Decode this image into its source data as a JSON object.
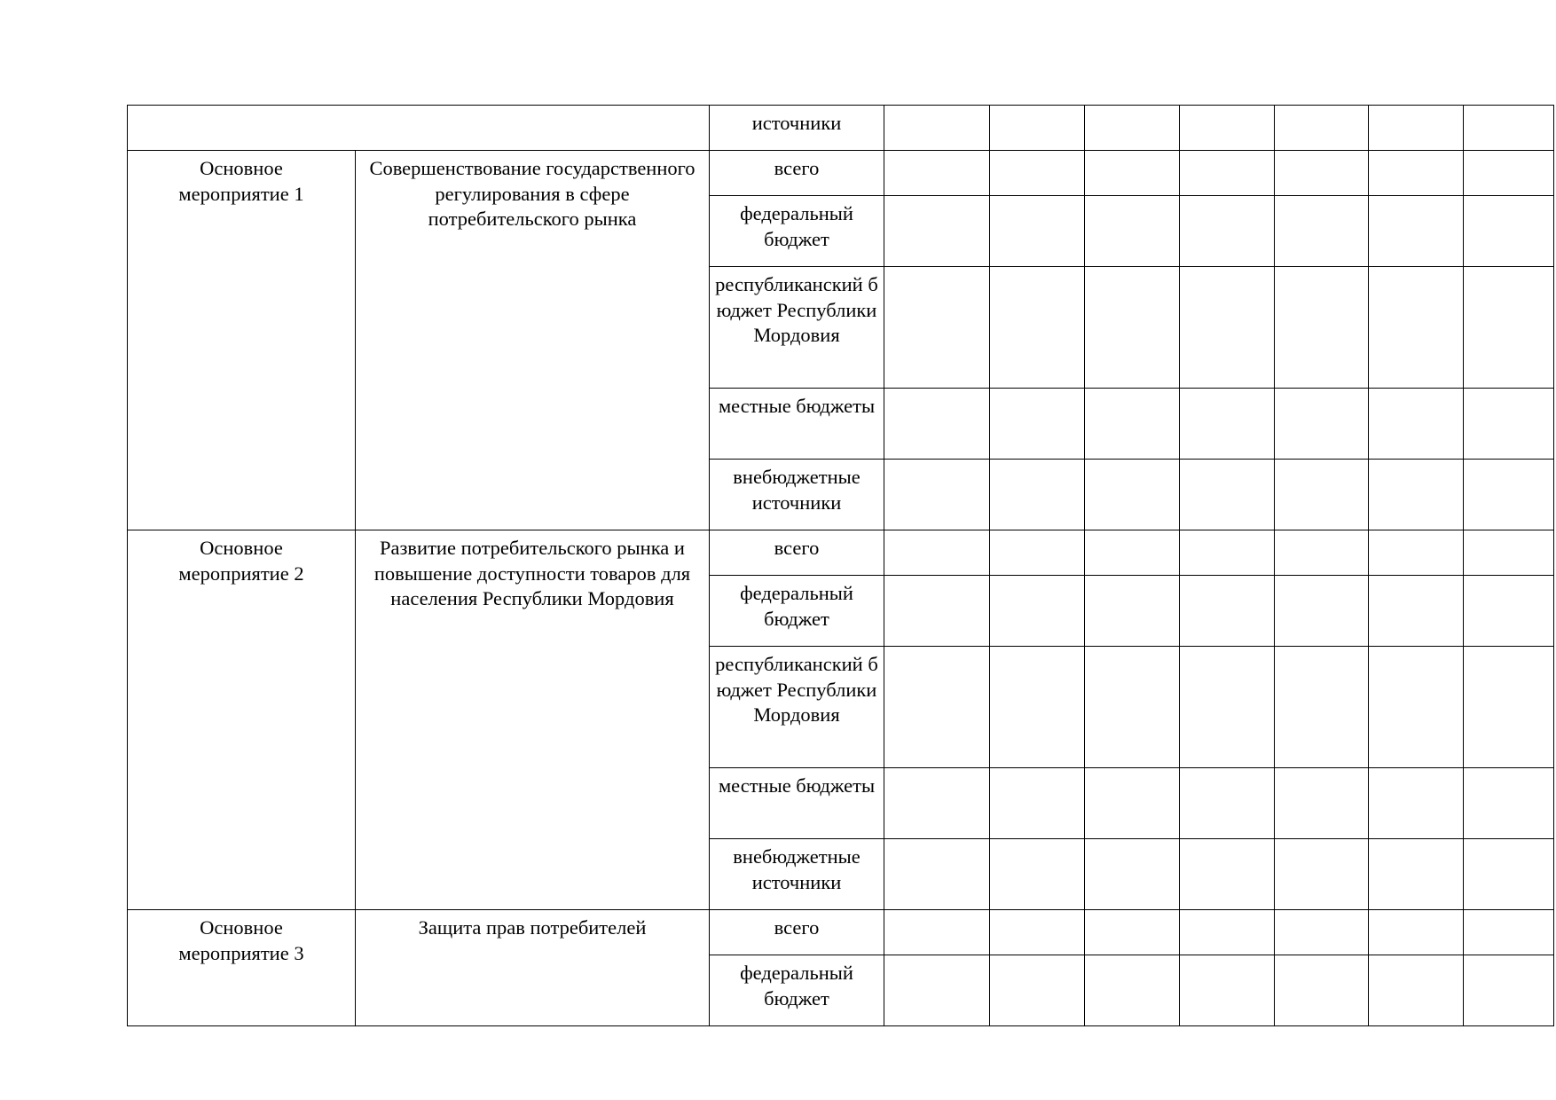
{
  "table": {
    "continuation_row": {
      "source": "источники"
    },
    "events": [
      {
        "label": "Основное мероприятие 1",
        "title": "Совершенствование государственного регулирования в сфере потребительского рынка",
        "sources": [
          "всего",
          "федеральный бюджет",
          "республиканский бюджет Республики Мордовия",
          "местные бюджеты",
          "внебюджетные источники"
        ]
      },
      {
        "label": "Основное мероприятие 2",
        "title": "Развитие потребительского рынка и повышение доступности товаров для населения Республики Мордовия",
        "sources": [
          "всего",
          "федеральный бюджет",
          "республиканский бюджет Республики Мордовия",
          "местные бюджеты",
          "внебюджетные источники"
        ]
      },
      {
        "label": "Основное мероприятие 3",
        "title": "Защита прав потребителей",
        "sources": [
          "всего",
          "федеральный бюджет"
        ]
      }
    ]
  }
}
